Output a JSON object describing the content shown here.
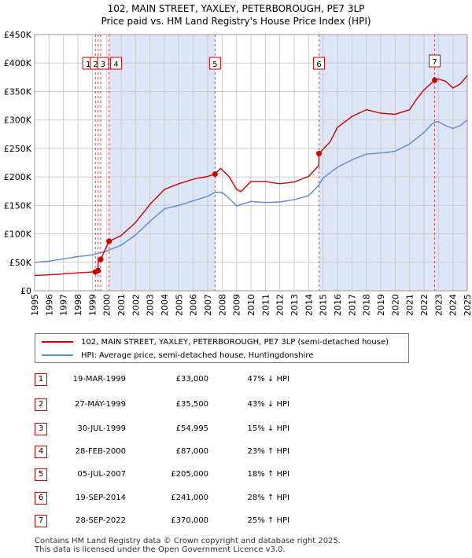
{
  "header": {
    "title_line1": "102, MAIN STREET, YAXLEY, PETERBOROUGH, PE7 3LP",
    "title_line2": "Price paid vs. HM Land Registry's House Price Index (HPI)"
  },
  "colors": {
    "price_paid": "#cc0000",
    "hpi": "#5b8ccc",
    "shade": "#dde5f7",
    "grid": "#cccccc",
    "marker_line": "#cc0000"
  },
  "chart_data": {
    "type": "line",
    "title": "102, MAIN STREET, YAXLEY, PETERBOROUGH, PE7 3LP — Price paid vs. HM Land Registry's House Price Index (HPI)",
    "xlabel": "",
    "ylabel": "",
    "xlim": [
      1995,
      2025
    ],
    "ylim": [
      0,
      450000
    ],
    "y_ticks": [
      0,
      50000,
      100000,
      150000,
      200000,
      250000,
      300000,
      350000,
      400000,
      450000
    ],
    "y_tick_labels": [
      "£0",
      "£50K",
      "£100K",
      "£150K",
      "£200K",
      "£250K",
      "£300K",
      "£350K",
      "£400K",
      "£450K"
    ],
    "x_ticks": [
      "1995",
      "1996",
      "1997",
      "1998",
      "1999",
      "2000",
      "2001",
      "2002",
      "2003",
      "2004",
      "2005",
      "2006",
      "2007",
      "2008",
      "2009",
      "2010",
      "2011",
      "2012",
      "2013",
      "2014",
      "2015",
      "2016",
      "2017",
      "2018",
      "2019",
      "2020",
      "2021",
      "2022",
      "2023",
      "2024",
      "2025"
    ],
    "grid": true,
    "legend_position": "below",
    "shaded_ranges": [
      [
        2000.16,
        2007.51
      ],
      [
        2014.72,
        2022.74
      ],
      [
        2022.74,
        2025
      ]
    ],
    "series": [
      {
        "name": "102, MAIN STREET, YAXLEY, PETERBOROUGH, PE7 3LP (semi-detached house)",
        "x": [
          1995.0,
          1996.0,
          1997.0,
          1998.0,
          1999.0,
          1999.21,
          1999.22,
          1999.4,
          1999.41,
          1999.57,
          1999.58,
          2000.16,
          2000.17,
          2001.0,
          2002.0,
          2003.0,
          2004.0,
          2005.0,
          2006.0,
          2007.0,
          2007.51,
          2007.9,
          2008.5,
          2009.0,
          2009.3,
          2010.0,
          2011.0,
          2012.0,
          2013.0,
          2014.0,
          2014.7,
          2014.72,
          2015.5,
          2016.0,
          2017.0,
          2018.0,
          2019.0,
          2020.0,
          2021.0,
          2021.5,
          2022.0,
          2022.74,
          2023.0,
          2023.5,
          2024.0,
          2024.5,
          2025.0
        ],
        "values": [
          27000,
          28000,
          29500,
          31500,
          33000,
          33000,
          35500,
          35500,
          54995,
          54995,
          55000,
          87000,
          87000,
          97000,
          120000,
          152000,
          178000,
          188000,
          196000,
          201000,
          205000,
          215000,
          200000,
          178000,
          174000,
          192000,
          192000,
          188000,
          191000,
          201000,
          220000,
          241000,
          262000,
          287000,
          306000,
          318000,
          312000,
          310000,
          318000,
          337000,
          353000,
          370000,
          372000,
          368000,
          356000,
          363000,
          378000
        ]
      },
      {
        "name": "HPI: Average price, semi-detached house, Huntingdonshire",
        "x": [
          1995.0,
          1996.0,
          1997.0,
          1998.0,
          1999.0,
          2000.0,
          2001.0,
          2002.0,
          2003.0,
          2004.0,
          2005.0,
          2006.0,
          2007.0,
          2007.5,
          2008.0,
          2008.5,
          2009.0,
          2009.5,
          2010.0,
          2011.0,
          2012.0,
          2013.0,
          2014.0,
          2014.72,
          2015.0,
          2016.0,
          2017.0,
          2018.0,
          2019.0,
          2020.0,
          2021.0,
          2022.0,
          2022.5,
          2022.74,
          2023.0,
          2023.5,
          2024.0,
          2024.5,
          2025.0
        ],
        "values": [
          50000,
          52000,
          56000,
          60000,
          63000,
          70000,
          80000,
          98000,
          122000,
          144000,
          150000,
          158000,
          166000,
          173000,
          173000,
          162000,
          149000,
          153000,
          157000,
          155000,
          156000,
          160000,
          167000,
          186000,
          198000,
          217000,
          230000,
          240000,
          242000,
          245000,
          258000,
          278000,
          292000,
          296000,
          297000,
          290000,
          285000,
          290000,
          300000
        ]
      }
    ],
    "markers": [
      {
        "label": "1",
        "x": 1999.21,
        "value": 33000
      },
      {
        "label": "2",
        "x": 1999.4,
        "value": 35500
      },
      {
        "label": "3",
        "x": 1999.58,
        "value": 54995
      },
      {
        "label": "4",
        "x": 2000.16,
        "value": 87000
      },
      {
        "label": "5",
        "x": 2007.51,
        "value": 205000
      },
      {
        "label": "6",
        "x": 2014.72,
        "value": 241000
      },
      {
        "label": "7",
        "x": 2022.74,
        "value": 370000
      }
    ]
  },
  "legend": {
    "price_paid_label": "102, MAIN STREET, YAXLEY, PETERBOROUGH, PE7 3LP (semi-detached house)",
    "hpi_label": "HPI: Average price, semi-detached house, Huntingdonshire"
  },
  "sales": [
    {
      "num": "1",
      "date": "19-MAR-1999",
      "price": "£33,000",
      "delta": "47% ↓ HPI"
    },
    {
      "num": "2",
      "date": "27-MAY-1999",
      "price": "£35,500",
      "delta": "43% ↓ HPI"
    },
    {
      "num": "3",
      "date": "30-JUL-1999",
      "price": "£54,995",
      "delta": "15% ↓ HPI"
    },
    {
      "num": "4",
      "date": "28-FEB-2000",
      "price": "£87,000",
      "delta": "23% ↑ HPI"
    },
    {
      "num": "5",
      "date": "05-JUL-2007",
      "price": "£205,000",
      "delta": "18% ↑ HPI"
    },
    {
      "num": "6",
      "date": "19-SEP-2014",
      "price": "£241,000",
      "delta": "28% ↑ HPI"
    },
    {
      "num": "7",
      "date": "28-SEP-2022",
      "price": "£370,000",
      "delta": "25% ↑ HPI"
    }
  ],
  "footer": {
    "line1": "Contains HM Land Registry data © Crown copyright and database right 2025.",
    "line2": "This data is licensed under the Open Government Licence v3.0."
  }
}
